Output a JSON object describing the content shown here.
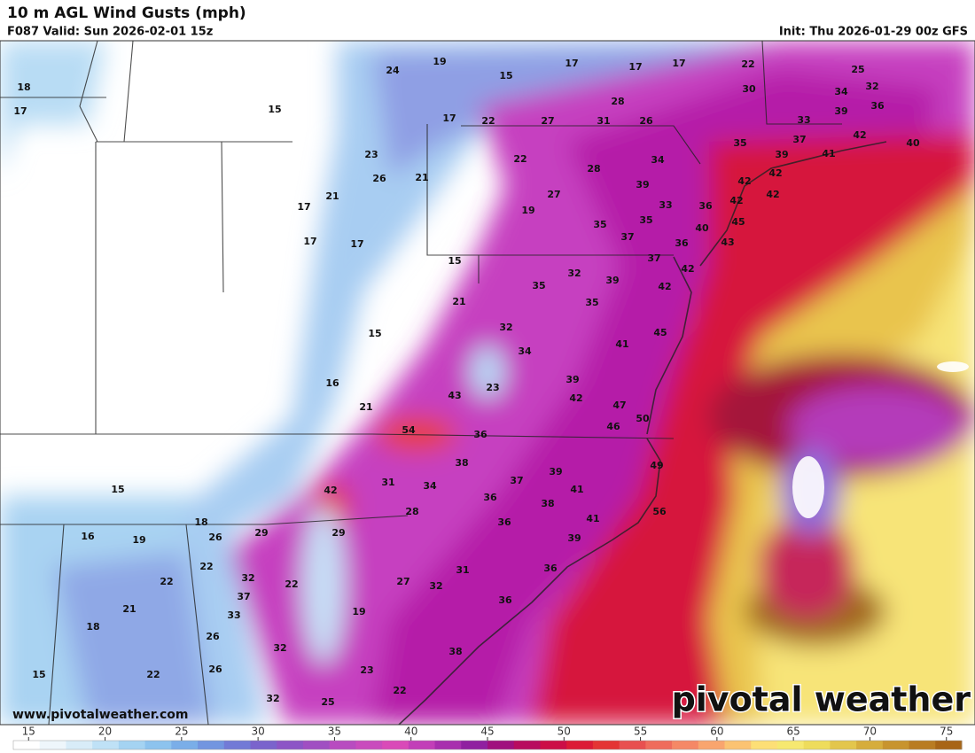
{
  "header": {
    "title": "10 m AGL Wind Gusts (mph)",
    "valid": "F087 Valid: Sun 2026-02-01 15z",
    "init": "Init: Thu 2026-01-29 00z GFS"
  },
  "footer": {
    "website": "www.pivotalweather.com",
    "logo": "pivotal weather"
  },
  "map_labels": [
    24,
    19,
    17,
    17,
    17,
    22,
    25,
    18,
    17,
    15,
    15,
    30,
    34,
    32,
    28,
    17,
    22,
    27,
    31,
    26,
    39,
    36,
    33,
    35,
    37,
    42,
    41,
    40,
    39,
    23,
    22,
    28,
    34,
    26,
    21,
    42,
    42,
    42,
    39,
    21,
    17,
    27,
    19,
    33,
    36,
    42,
    35,
    35,
    37,
    40,
    45,
    17,
    17,
    36,
    43,
    15,
    37,
    42,
    32,
    35,
    39,
    42,
    21,
    35,
    32,
    15,
    45,
    41,
    34,
    39,
    23,
    16,
    43,
    42,
    47,
    50,
    21,
    54,
    46,
    36,
    38,
    39,
    49,
    31,
    34,
    37,
    15,
    42,
    41,
    36,
    38,
    56,
    28,
    18,
    36,
    41,
    29,
    29,
    16,
    19,
    26,
    39,
    22,
    36,
    31,
    32,
    22,
    22,
    27,
    32,
    37,
    21,
    33,
    19,
    36,
    18,
    26,
    32,
    38,
    26,
    22,
    23,
    15,
    22,
    32,
    25
  ],
  "colorbar": {
    "lim": [
      14,
      76
    ],
    "ticks": [
      15,
      20,
      25,
      30,
      35,
      40,
      45,
      50,
      55,
      60,
      65,
      70,
      75
    ],
    "colors": [
      "#ffffff",
      "#eef6fb",
      "#d8ecf8",
      "#bfe1f6",
      "#a4d3f2",
      "#8cc3ee",
      "#7aaee8",
      "#7295e0",
      "#727ad6",
      "#7a63cc",
      "#8c55c6",
      "#a04fc2",
      "#b84cc0",
      "#c94bbd",
      "#d94ab8",
      "#c23fb8",
      "#a82fae",
      "#9020a0",
      "#a0107e",
      "#b80c5f",
      "#cc0e47",
      "#dc1a36",
      "#e43434",
      "#e85050",
      "#ef6c5c",
      "#f58866",
      "#f9a56e",
      "#fbc372",
      "#fddf76",
      "#f6e870",
      "#eedc5c",
      "#e3c64c",
      "#d6ad3c",
      "#c8942e",
      "#b97c22",
      "#a86516"
    ]
  }
}
